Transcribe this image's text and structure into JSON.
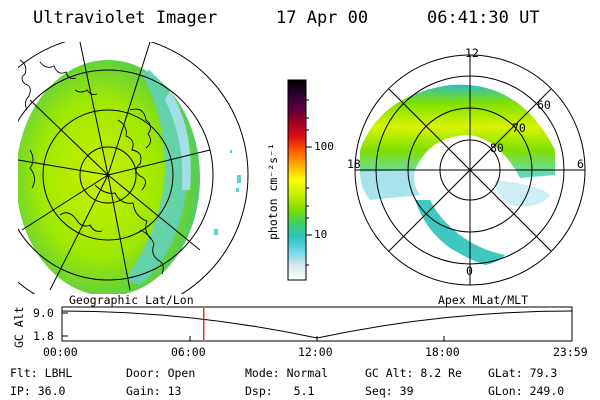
{
  "header": {
    "title": "Ultraviolet Imager",
    "date": "17 Apr 00",
    "time": "06:41:30 UT"
  },
  "colorbar": {
    "label": "photon cm⁻²s⁻¹",
    "ticks": [
      "100",
      "10"
    ],
    "colors": [
      "#000000",
      "#2a0030",
      "#5a0040",
      "#a00020",
      "#e01010",
      "#ff6000",
      "#ffb000",
      "#ffff00",
      "#c8f000",
      "#80e000",
      "#40d060",
      "#30c0c0",
      "#70d8e8",
      "#d8e8f0",
      "#ffffff"
    ]
  },
  "left_panel": {
    "caption": "Geographic Lat/Lon"
  },
  "right_panel": {
    "caption": "Apex MLat/MLT",
    "mlt_labels": {
      "top": "12",
      "left": "18",
      "right": "6",
      "bottom": "0"
    },
    "lat_labels": [
      "60",
      "70",
      "80"
    ]
  },
  "altitude_plot": {
    "ylabel": "GC Alt",
    "yticks": [
      "9.0",
      "1.8"
    ],
    "xticks": [
      "00:00",
      "06:00",
      "12:00",
      "18:00",
      "23:59"
    ],
    "current_time_fraction": 0.278
  },
  "footer": {
    "rows": [
      [
        {
          "key": "Flt:",
          "value": "LBHL"
        },
        {
          "key": "Door:",
          "value": "Open"
        },
        {
          "key": "Mode:",
          "value": "Normal"
        },
        {
          "key": "GC Alt:",
          "value": "8.2 Re"
        },
        {
          "key": "GLat:",
          "value": "79.3"
        }
      ],
      [
        {
          "key": "IP:",
          "value": "36.0"
        },
        {
          "key": "Gain:",
          "value": "13"
        },
        {
          "key": "Dsp:",
          "value": "5.1"
        },
        {
          "key": "Seq:",
          "value": "39"
        },
        {
          "key": "GLon:",
          "value": "249.0"
        }
      ]
    ]
  }
}
